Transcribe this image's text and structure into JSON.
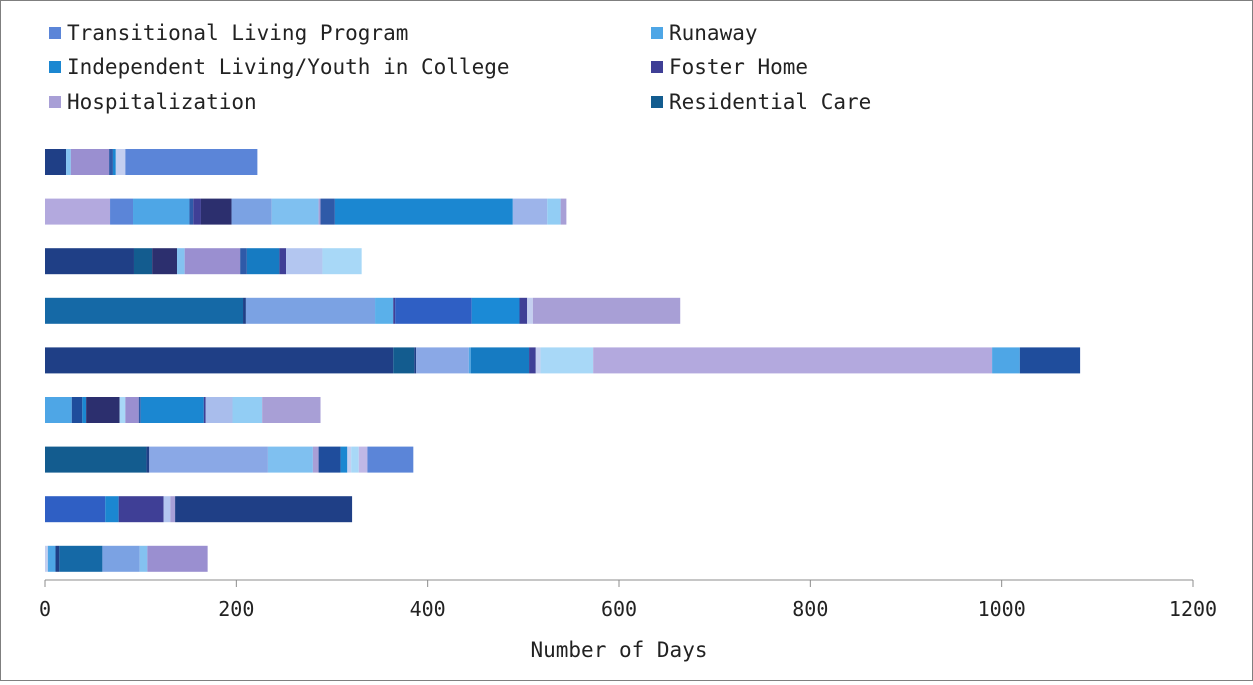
{
  "chart_data": {
    "type": "bar",
    "orientation": "horizontal",
    "stacked": true,
    "xlabel": "Number of Days",
    "xlim": [
      0,
      1200
    ],
    "x_ticks": [
      "0",
      "200",
      "400",
      "600",
      "800",
      "1000",
      "1200"
    ],
    "grid": false,
    "legend_position": "top",
    "legend": [
      {
        "name": "Transitional Living Program",
        "color": "#5b85d8"
      },
      {
        "name": "Runaway",
        "color": "#4ea6e6"
      },
      {
        "name": "Independent Living/Youth in College",
        "color": "#1b87d1"
      },
      {
        "name": "Foster Home",
        "color": "#3f3f96"
      },
      {
        "name": "Hospitalization",
        "color": "#a89fd6"
      },
      {
        "name": "Residential Care",
        "color": "#135c8f"
      }
    ],
    "bars": [
      {
        "segments": [
          {
            "value": 22,
            "color": "#1f3f86"
          },
          {
            "value": 5,
            "color": "#84c2f0"
          },
          {
            "value": 40,
            "color": "#9a8fd0"
          },
          {
            "value": 4,
            "color": "#2f5aa8"
          },
          {
            "value": 3,
            "color": "#1b87d1"
          },
          {
            "value": 10,
            "color": "#c4cff0"
          },
          {
            "value": 138,
            "color": "#5b85d8"
          }
        ]
      },
      {
        "segments": [
          {
            "value": 68,
            "color": "#b3a9de"
          },
          {
            "value": 24,
            "color": "#5b85d8"
          },
          {
            "value": 59,
            "color": "#4ea6e6"
          },
          {
            "value": 4,
            "color": "#2f5aa8"
          },
          {
            "value": 8,
            "color": "#3f3f96"
          },
          {
            "value": 32,
            "color": "#2c2f6e"
          },
          {
            "value": 42,
            "color": "#7ba2e3"
          },
          {
            "value": 49,
            "color": "#7fc0f0"
          },
          {
            "value": 2,
            "color": "#a89fd6"
          },
          {
            "value": 15,
            "color": "#2f5aa8"
          },
          {
            "value": 186,
            "color": "#1b87d1"
          },
          {
            "value": 36,
            "color": "#9db4ea"
          },
          {
            "value": 14,
            "color": "#92cdf4"
          },
          {
            "value": 6,
            "color": "#a89fd6"
          }
        ]
      },
      {
        "segments": [
          {
            "value": 93,
            "color": "#1f3f86"
          },
          {
            "value": 19,
            "color": "#135c8f"
          },
          {
            "value": 26,
            "color": "#2c2f6e"
          },
          {
            "value": 8,
            "color": "#84c2f0"
          },
          {
            "value": 58,
            "color": "#9a8fd0"
          },
          {
            "value": 7,
            "color": "#2f5aa8"
          },
          {
            "value": 34,
            "color": "#167bc2"
          },
          {
            "value": 7,
            "color": "#3f3f96"
          },
          {
            "value": 38,
            "color": "#b3c6f0"
          },
          {
            "value": 41,
            "color": "#a8d8f7"
          }
        ]
      },
      {
        "segments": [
          {
            "value": 207,
            "color": "#1569a6"
          },
          {
            "value": 3,
            "color": "#1f3f86"
          },
          {
            "value": 135,
            "color": "#7ba2e3"
          },
          {
            "value": 19,
            "color": "#5ab0ea"
          },
          {
            "value": 2,
            "color": "#3f3f96"
          },
          {
            "value": 80,
            "color": "#2f5fc4"
          },
          {
            "value": 50,
            "color": "#1b8ad6"
          },
          {
            "value": 8,
            "color": "#3f3f96"
          },
          {
            "value": 6,
            "color": "#c4cff0"
          },
          {
            "value": 154,
            "color": "#a89fd6"
          }
        ]
      },
      {
        "segments": [
          {
            "value": 364,
            "color": "#1f3f86"
          },
          {
            "value": 22,
            "color": "#135c8f"
          },
          {
            "value": 2,
            "color": "#1f3f86"
          },
          {
            "value": 55,
            "color": "#8aa8e6"
          },
          {
            "value": 2,
            "color": "#4ea6e6"
          },
          {
            "value": 61,
            "color": "#167bc2"
          },
          {
            "value": 7,
            "color": "#3f3f96"
          },
          {
            "value": 5,
            "color": "#c4cff0"
          },
          {
            "value": 55,
            "color": "#a8d8f7"
          },
          {
            "value": 417,
            "color": "#b3a9de"
          },
          {
            "value": 29,
            "color": "#4ea6e6"
          },
          {
            "value": 63,
            "color": "#1f4d9c"
          }
        ]
      },
      {
        "segments": [
          {
            "value": 28,
            "color": "#4ea6e6"
          },
          {
            "value": 11,
            "color": "#1f4d9c"
          },
          {
            "value": 4,
            "color": "#1b87d1"
          },
          {
            "value": 35,
            "color": "#2c2f6e"
          },
          {
            "value": 6,
            "color": "#a8d8f7"
          },
          {
            "value": 14,
            "color": "#9a8fd0"
          },
          {
            "value": 2,
            "color": "#2f5aa8"
          },
          {
            "value": 66,
            "color": "#1b87d1"
          },
          {
            "value": 2,
            "color": "#3f3f96"
          },
          {
            "value": 28,
            "color": "#a9bdec"
          },
          {
            "value": 31,
            "color": "#92cdf4"
          },
          {
            "value": 61,
            "color": "#a89fd6"
          }
        ]
      },
      {
        "segments": [
          {
            "value": 106,
            "color": "#135c8f"
          },
          {
            "value": 3,
            "color": "#1f3f86"
          },
          {
            "value": 124,
            "color": "#8aa8e6"
          },
          {
            "value": 47,
            "color": "#7fc0f0"
          },
          {
            "value": 6,
            "color": "#a89fd6"
          },
          {
            "value": 23,
            "color": "#1f4d9c"
          },
          {
            "value": 7,
            "color": "#1b87d1"
          },
          {
            "value": 4,
            "color": "#c4cff0"
          },
          {
            "value": 8,
            "color": "#a8d8f7"
          },
          {
            "value": 9,
            "color": "#c0b8e6"
          },
          {
            "value": 48,
            "color": "#5b85d8"
          }
        ]
      },
      {
        "segments": [
          {
            "value": 63,
            "color": "#2f5fc4"
          },
          {
            "value": 14,
            "color": "#1b87d1"
          },
          {
            "value": 47,
            "color": "#3f3f96"
          },
          {
            "value": 7,
            "color": "#b3c6f0"
          },
          {
            "value": 5,
            "color": "#a89fd6"
          },
          {
            "value": 185,
            "color": "#1f3f86"
          }
        ]
      },
      {
        "segments": [
          {
            "value": 3,
            "color": "#c4cff0"
          },
          {
            "value": 8,
            "color": "#4ea6e6"
          },
          {
            "value": 4,
            "color": "#1f3f86"
          },
          {
            "value": 45,
            "color": "#1569a6"
          },
          {
            "value": 39,
            "color": "#7ba2e3"
          },
          {
            "value": 8,
            "color": "#84c2f0"
          },
          {
            "value": 63,
            "color": "#9a8fd0"
          }
        ]
      }
    ]
  }
}
